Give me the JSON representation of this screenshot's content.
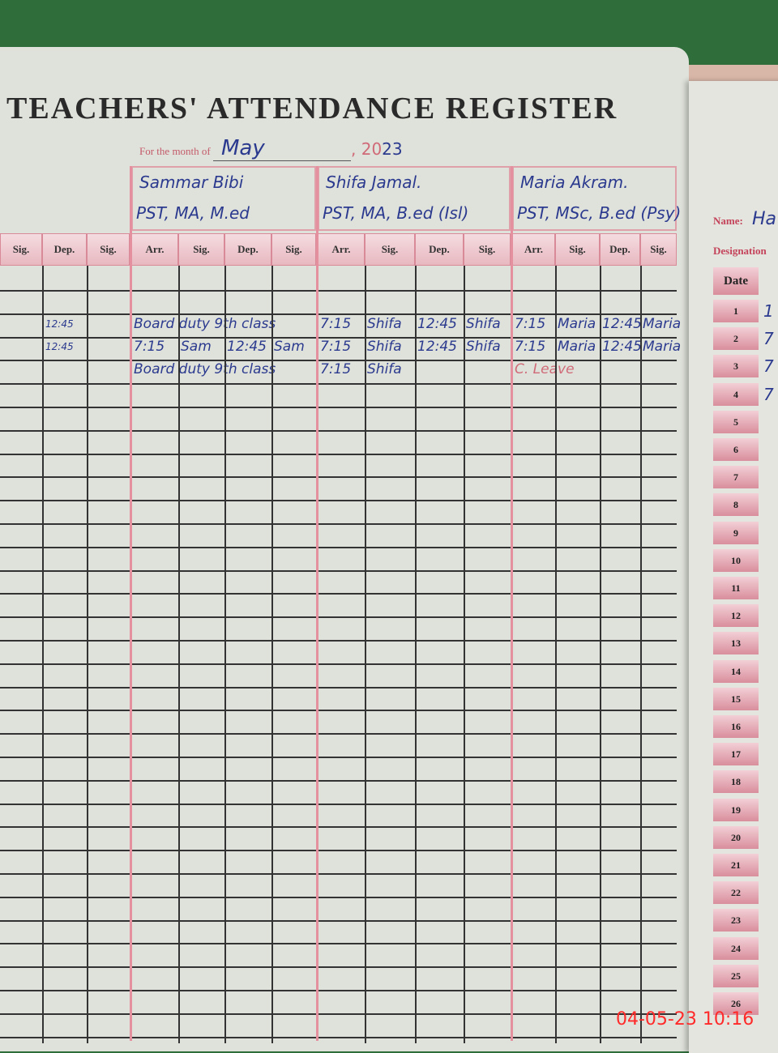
{
  "register": {
    "title": "TEACHERS' ATTENDANCE REGISTER",
    "month_label": "For the month of",
    "month": "May",
    "year_prefix": ", 20",
    "year_suffix": "23"
  },
  "columns": [
    "Arr.",
    "Sig.",
    "Dep.",
    "Sig."
  ],
  "partial_columns": [
    "Sig.",
    "Dep.",
    "Sig."
  ],
  "teachers": [
    {
      "name": "Sammar Bibi",
      "qualification": "PST, MA, M.ed",
      "rows": [
        [
          "",
          "",
          "",
          ""
        ],
        [
          "Board duty 9th class",
          "",
          "",
          ""
        ],
        [
          "7:15",
          "Sam",
          "12:45",
          "Sam"
        ],
        [
          "Board duty 9th class",
          "",
          "",
          ""
        ]
      ]
    },
    {
      "name": "Shifa Jamal.",
      "qualification": "PST, MA, B.ed (Isl)",
      "rows": [
        [
          "",
          "",
          "",
          ""
        ],
        [
          "7:15",
          "Shifa",
          "12:45",
          "Shifa"
        ],
        [
          "7:15",
          "Shifa",
          "12:45",
          "Shifa"
        ],
        [
          "7:15",
          "Shifa",
          "",
          ""
        ]
      ]
    },
    {
      "name": "Maria Akram.",
      "qualification": "PST, MSc, B.ed (Psy)",
      "rows": [
        [
          "",
          "",
          "",
          ""
        ],
        [
          "7:15",
          "Maria",
          "12:45",
          "Maria"
        ],
        [
          "7:15",
          "Maria",
          "12:45",
          "Maria"
        ],
        [
          "C. Leave",
          "",
          "",
          ""
        ]
      ]
    }
  ],
  "partial_teacher": {
    "rows": [
      [
        "",
        "",
        ""
      ],
      [
        "",
        "12:45",
        ""
      ],
      [
        "",
        "12:45",
        ""
      ],
      [
        "",
        "",
        ""
      ]
    ]
  },
  "right_page": {
    "name_label": "Name:",
    "name_value": "Ha",
    "designation_label": "Designation",
    "date_header": "Date",
    "dates": [
      "1",
      "2",
      "3",
      "4",
      "5",
      "6",
      "7",
      "8",
      "9",
      "10",
      "11",
      "12",
      "13",
      "14",
      "15",
      "16",
      "17",
      "18",
      "19",
      "20",
      "21",
      "22",
      "23",
      "24",
      "25",
      "26"
    ],
    "entries": [
      "1",
      "7",
      "7",
      "7"
    ]
  },
  "timestamp": "04-05-23 10:16",
  "colors": {
    "ink": "#2b3a8f",
    "rule_red": "#e4909e",
    "background_green": "#2f6e3a",
    "paper": "#dfe2da"
  }
}
